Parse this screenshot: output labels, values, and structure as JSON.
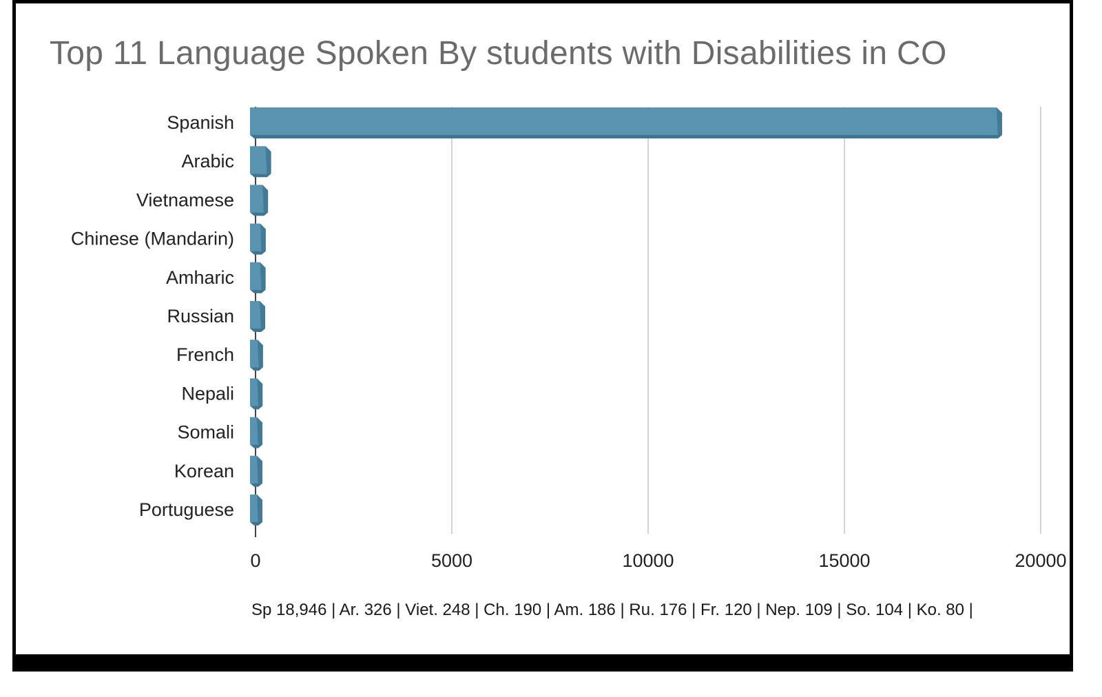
{
  "chart_data": {
    "type": "bar",
    "orientation": "horizontal",
    "title": "Top 11 Language Spoken By students with Disabilities in CO",
    "categories": [
      "Spanish",
      "Arabic",
      "Vietnamese",
      "Chinese (Mandarin)",
      "Amharic",
      "Russian",
      "French",
      "Nepali",
      "Somali",
      "Korean",
      "Portuguese"
    ],
    "values": [
      18946,
      326,
      248,
      190,
      186,
      176,
      120,
      109,
      104,
      80,
      60
    ],
    "xlim": [
      0,
      20000
    ],
    "xticks": [
      "0",
      "5000",
      "10000",
      "15000",
      "20000"
    ],
    "xlabel": "",
    "ylabel": "",
    "grid": "vertical",
    "legend": "none",
    "bar_color": "#5a93b0",
    "bar_side_color": "#3f7591",
    "note": "Sp 18,946 | Ar. 326 | Viet. 248 | Ch. 190 | Am. 186 | Ru. 176 | Fr. 120 | Nep. 109 | So. 104 | Ko. 80 |"
  }
}
